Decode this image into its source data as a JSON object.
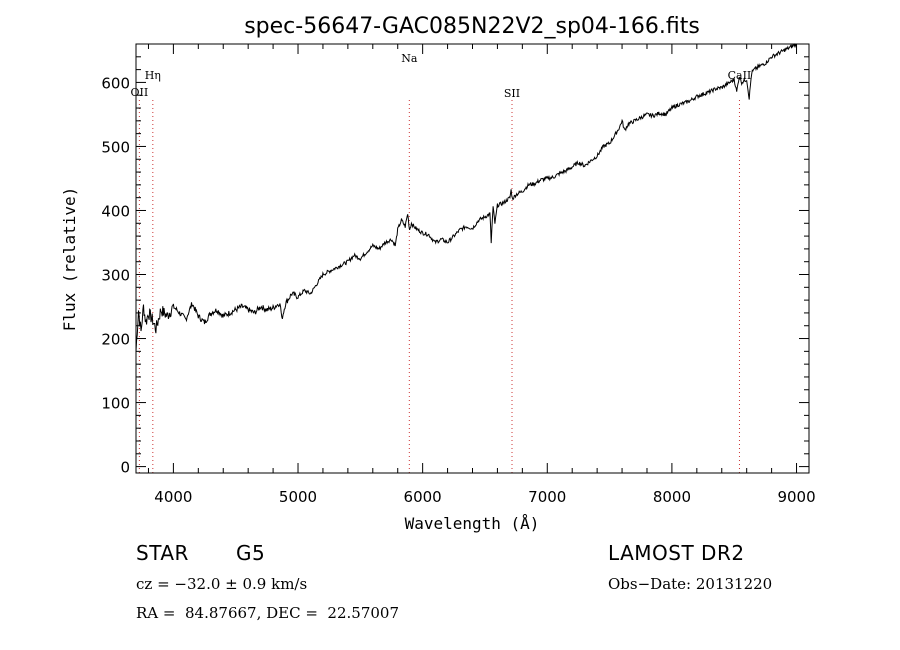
{
  "chart_data": {
    "type": "line",
    "title": "spec-56647-GAC085N22V2_sp04-166.fits",
    "xlabel": "Wavelength (Å)",
    "ylabel": "Flux (relative)",
    "xlim": [
      3700,
      9100
    ],
    "ylim": [
      -10,
      660
    ],
    "xticks": [
      4000,
      5000,
      6000,
      7000,
      8000,
      9000
    ],
    "yticks": [
      0,
      100,
      200,
      300,
      400,
      500,
      600
    ],
    "xtick_labels": [
      "4000",
      "5000",
      "6000",
      "7000",
      "8000",
      "9000"
    ],
    "ytick_labels": [
      "0",
      "100",
      "200",
      "300",
      "400",
      "500",
      "600"
    ],
    "grid": false,
    "line_markers": [
      {
        "name": "OII",
        "wavelength": 3727
      },
      {
        "name": "Hη",
        "wavelength": 3835
      },
      {
        "name": "Na",
        "wavelength": 5893
      },
      {
        "name": "SII",
        "wavelength": 6717
      },
      {
        "name": "CaII",
        "wavelength": 8542
      }
    ],
    "series": [
      {
        "values_x": [
          3700,
          3720,
          3740,
          3760,
          3780,
          3800,
          3830,
          3860,
          3900,
          3950,
          4000,
          4050,
          4100,
          4150,
          4200,
          4250,
          4300,
          4350,
          4400,
          4450,
          4500,
          4550,
          4600,
          4650,
          4700,
          4750,
          4800,
          4850,
          4860,
          4870,
          4900,
          4950,
          5000,
          5050,
          5100,
          5150,
          5200,
          5250,
          5300,
          5350,
          5400,
          5450,
          5500,
          5550,
          5600,
          5650,
          5700,
          5750,
          5780,
          5800,
          5830,
          5860,
          5880,
          5895,
          5910,
          5930,
          5960,
          6000,
          6050,
          6100,
          6150,
          6200,
          6250,
          6300,
          6350,
          6400,
          6450,
          6500,
          6540,
          6550,
          6565,
          6580,
          6600,
          6650,
          6700,
          6710,
          6720,
          6750,
          6800,
          6850,
          6900,
          6950,
          7000,
          7050,
          7100,
          7150,
          7200,
          7250,
          7300,
          7350,
          7400,
          7450,
          7500,
          7550,
          7580,
          7600,
          7620,
          7650,
          7700,
          7750,
          7800,
          7850,
          7900,
          7950,
          8000,
          8050,
          8100,
          8150,
          8200,
          8250,
          8300,
          8350,
          8400,
          8450,
          8500,
          8520,
          8540,
          8560,
          8600,
          8620,
          8640,
          8660,
          8700,
          8750,
          8800,
          8850,
          8900,
          8950,
          9000
        ],
        "values": [
          180,
          245,
          210,
          250,
          225,
          240,
          230,
          215,
          245,
          235,
          250,
          240,
          230,
          255,
          235,
          225,
          240,
          245,
          235,
          240,
          245,
          250,
          245,
          240,
          250,
          245,
          248,
          255,
          250,
          230,
          255,
          270,
          265,
          275,
          270,
          285,
          300,
          305,
          310,
          315,
          320,
          330,
          325,
          335,
          345,
          340,
          350,
          355,
          345,
          370,
          385,
          375,
          395,
          370,
          380,
          375,
          370,
          365,
          362,
          350,
          355,
          350,
          360,
          370,
          375,
          372,
          385,
          390,
          395,
          350,
          405,
          380,
          408,
          412,
          420,
          432,
          418,
          425,
          430,
          440,
          442,
          448,
          450,
          452,
          458,
          462,
          468,
          475,
          470,
          478,
          485,
          500,
          505,
          520,
          530,
          540,
          525,
          535,
          540,
          545,
          550,
          548,
          552,
          550,
          560,
          565,
          568,
          572,
          578,
          582,
          585,
          590,
          592,
          598,
          605,
          585,
          610,
          600,
          605,
          575,
          615,
          620,
          625,
          630,
          640,
          645,
          650,
          655,
          660
        ]
      }
    ]
  },
  "footer": {
    "object_class": "STAR",
    "subclass": "G5",
    "survey": "LAMOST DR2",
    "cz": "cz = −32.0 ± 0.9 km/s",
    "obs_date": "Obs−Date: 20131220",
    "coords": "RA =  84.87667, DEC =  22.57007"
  }
}
